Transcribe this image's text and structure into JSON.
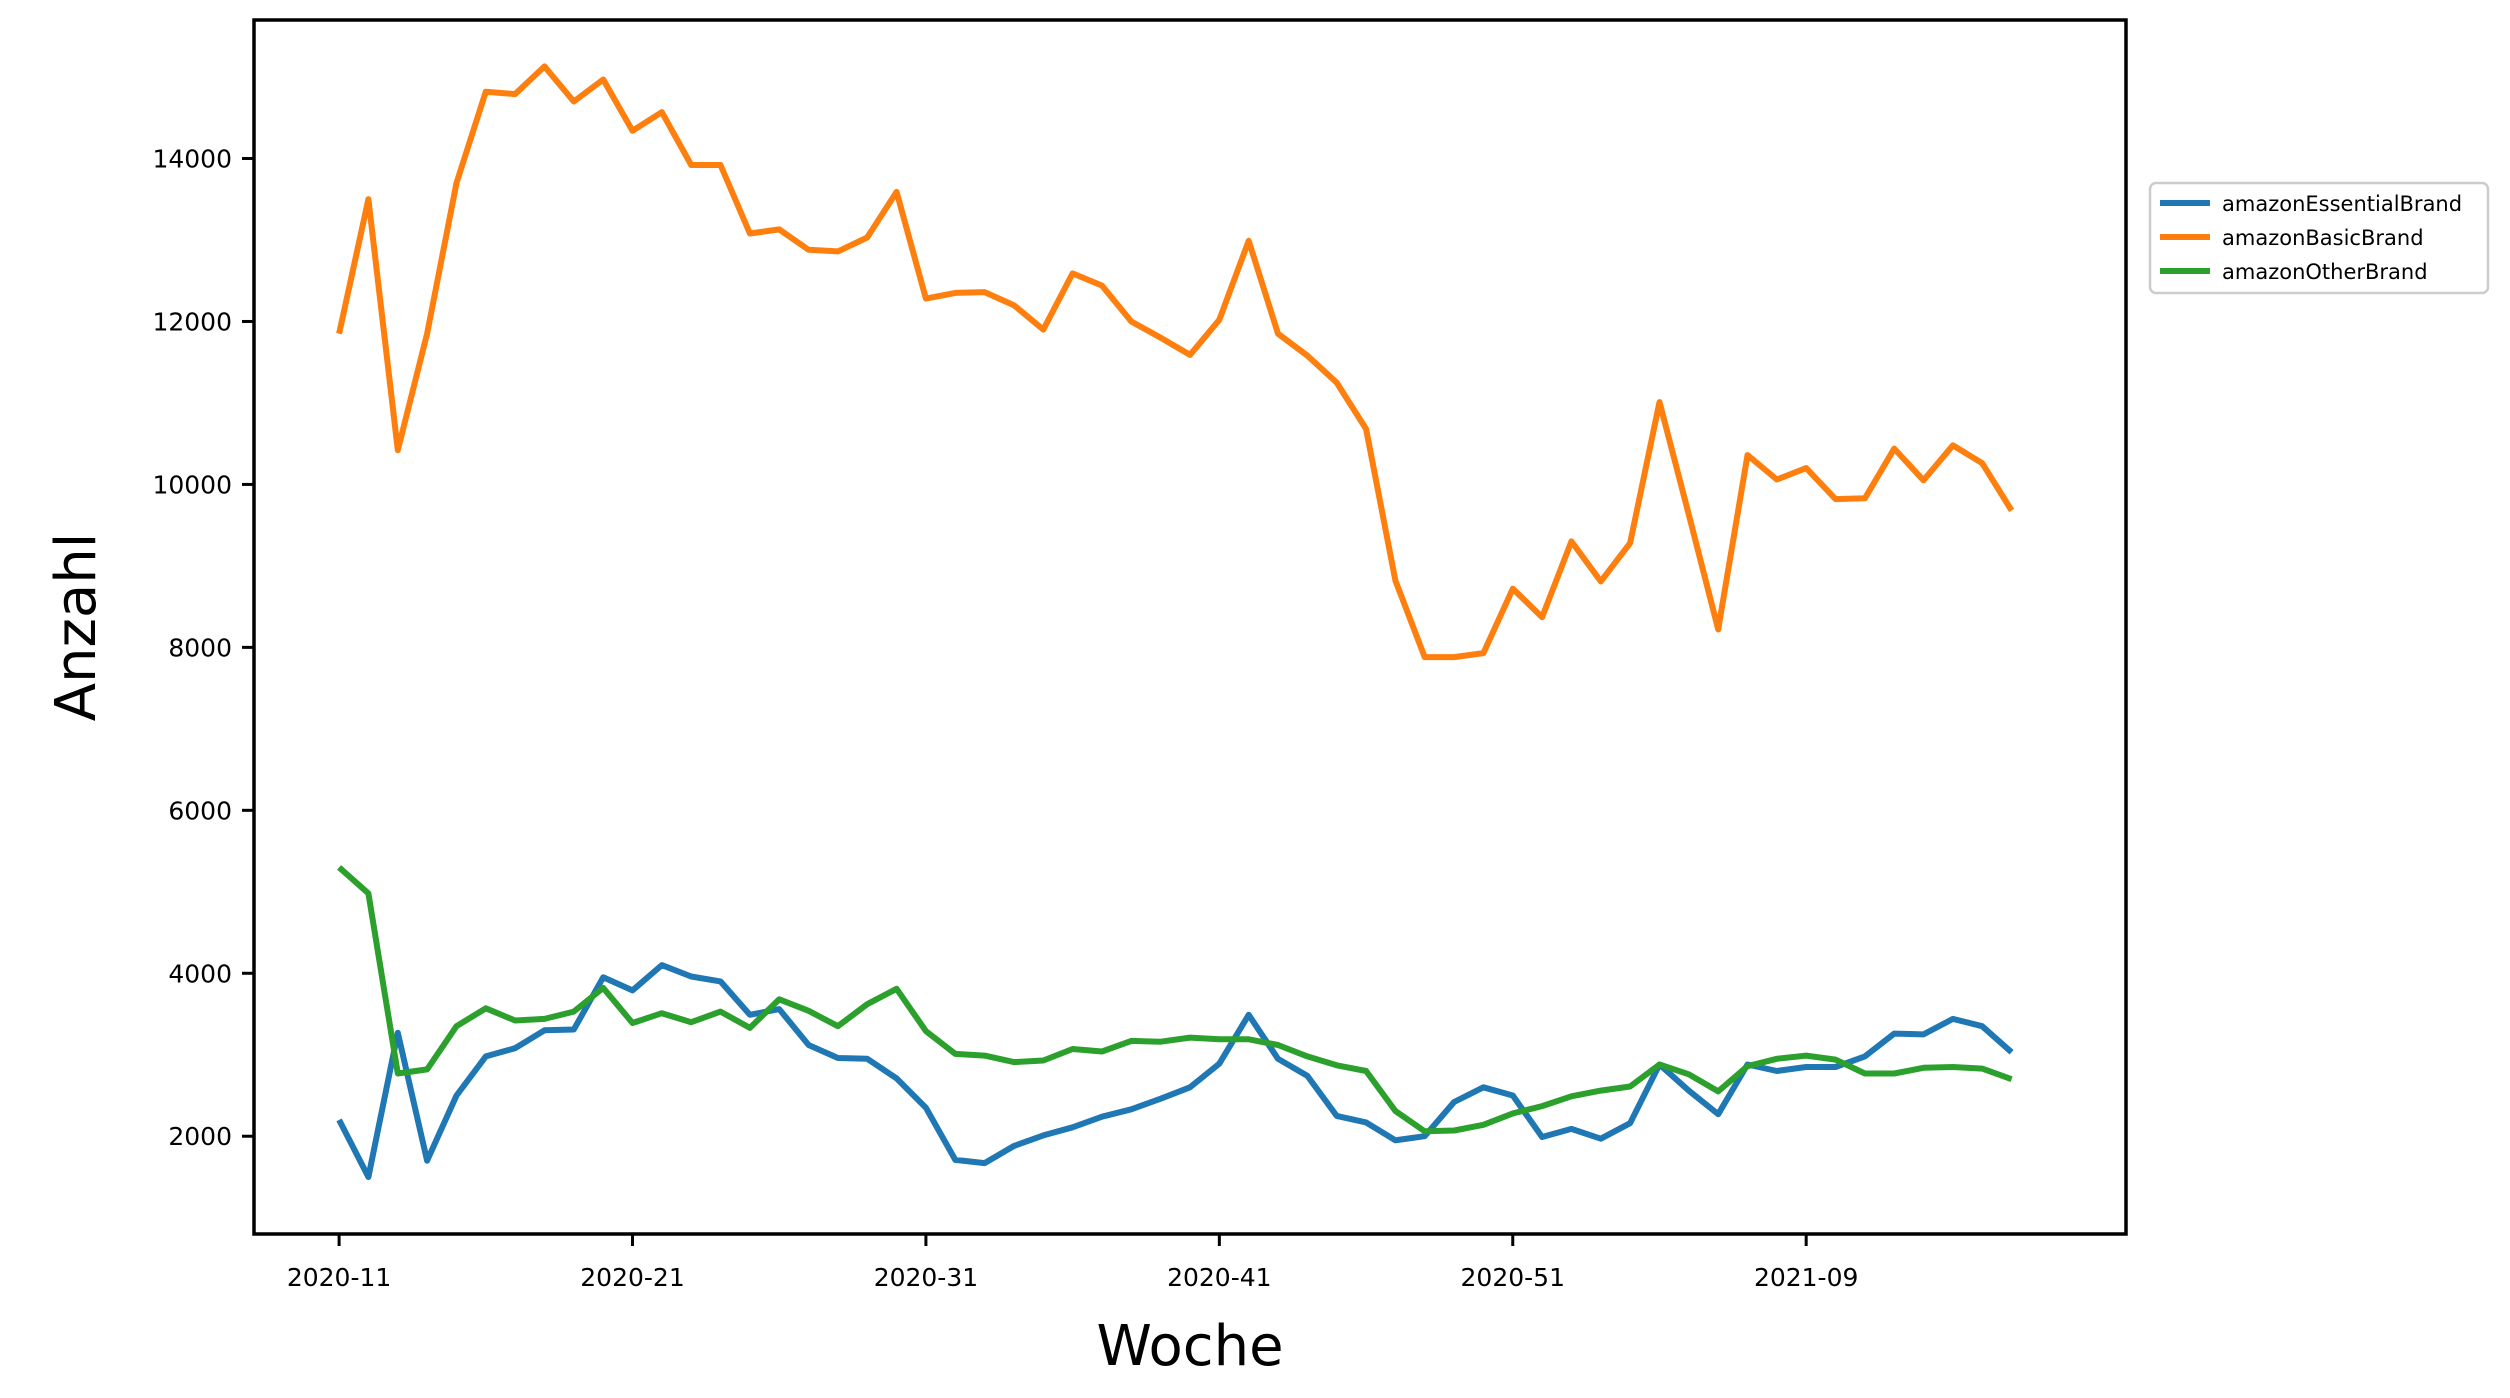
{
  "chart_data": {
    "type": "line",
    "title": "",
    "xlabel": "Woche",
    "ylabel": "Anzahl",
    "ylim": [
      800,
      15700
    ],
    "xlim": [
      -2.9,
      60.9
    ],
    "grid": false,
    "legend_position": "outside-right",
    "x_tick_labels": [
      {
        "index": 0,
        "label": "2020-11"
      },
      {
        "index": 10,
        "label": "2020-21"
      },
      {
        "index": 20,
        "label": "2020-31"
      },
      {
        "index": 30,
        "label": "2020-41"
      },
      {
        "index": 40,
        "label": "2020-51"
      },
      {
        "index": 50,
        "label": "2021-09"
      }
    ],
    "y_ticks": [
      2000,
      4000,
      6000,
      8000,
      10000,
      12000,
      14000
    ],
    "series": [
      {
        "name": "amazonEssentialBrand",
        "color": "#1f77b4",
        "values": [
          2200,
          1500,
          3270,
          1700,
          2500,
          2980,
          3080,
          3300,
          3310,
          3950,
          3790,
          4100,
          3960,
          3900,
          3490,
          3560,
          3120,
          2960,
          2950,
          2710,
          2350,
          1710,
          1670,
          1880,
          2010,
          2110,
          2240,
          2330,
          2460,
          2600,
          2890,
          3490,
          2950,
          2740,
          2250,
          2170,
          1950,
          2000,
          2420,
          2600,
          2500,
          1990,
          2090,
          1970,
          2160,
          2880,
          2560,
          2270,
          2880,
          2800,
          2850,
          2850,
          2980,
          3260,
          3250,
          3440,
          3350,
          3030
        ]
      },
      {
        "name": "amazonBasicBrand",
        "color": "#ff7f0e",
        "values": [
          11850,
          13500,
          10420,
          11850,
          13700,
          14820,
          14790,
          15130,
          14700,
          14970,
          14340,
          14570,
          13920,
          13920,
          13080,
          13130,
          12880,
          12860,
          13030,
          13590,
          12280,
          12350,
          12360,
          12200,
          11900,
          12590,
          12440,
          12000,
          11800,
          11590,
          12020,
          12990,
          11850,
          11580,
          11250,
          10680,
          8820,
          7880,
          7880,
          7930,
          8720,
          8370,
          9300,
          8810,
          9280,
          11010,
          9630,
          8220,
          10360,
          10060,
          10200,
          9820,
          9830,
          10440,
          10050,
          10480,
          10260,
          9680
        ]
      },
      {
        "name": "amazonOtherBrand",
        "color": "#2ca02c",
        "values": [
          5300,
          4980,
          2770,
          2820,
          3350,
          3570,
          3420,
          3440,
          3530,
          3820,
          3390,
          3510,
          3400,
          3530,
          3330,
          3680,
          3540,
          3350,
          3620,
          3810,
          3290,
          3010,
          2990,
          2910,
          2930,
          3070,
          3040,
          3170,
          3160,
          3210,
          3190,
          3190,
          3120,
          2980,
          2870,
          2800,
          2310,
          2060,
          2070,
          2140,
          2280,
          2370,
          2490,
          2560,
          2610,
          2880,
          2760,
          2550,
          2860,
          2950,
          2990,
          2940,
          2770,
          2770,
          2840,
          2850,
          2830,
          2700
        ]
      }
    ]
  }
}
